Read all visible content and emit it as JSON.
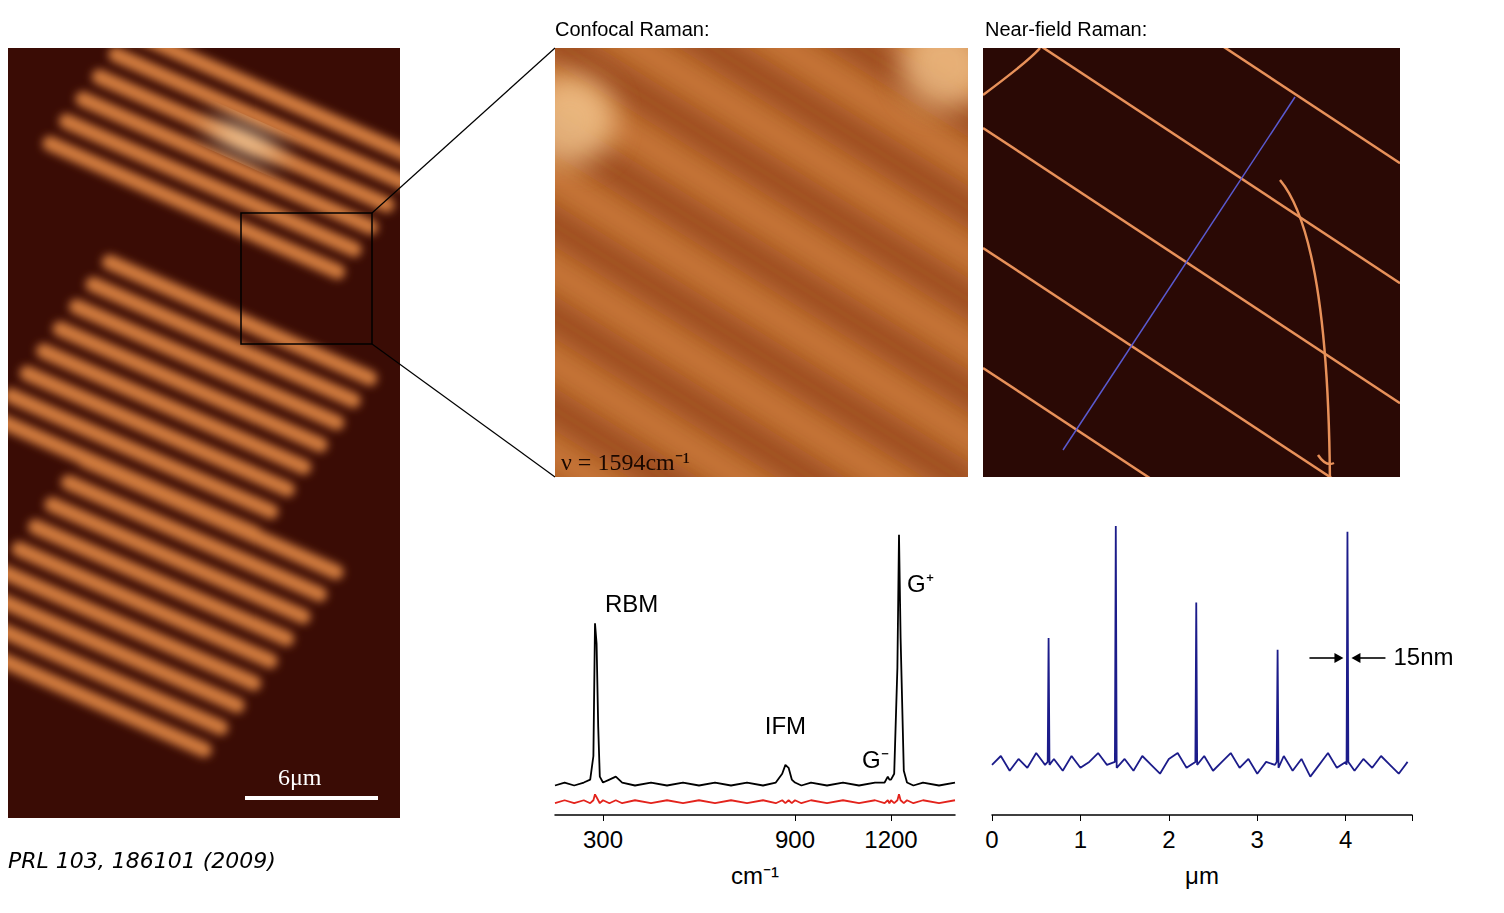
{
  "panels": {
    "left_image": {
      "scale_bar": "6μm"
    },
    "confocal": {
      "title": "Confocal Raman:",
      "label": "ν = 1594cm⁻¹"
    },
    "near_field": {
      "title": "Near-field Raman:"
    }
  },
  "citation": "PRL 103, 186101 (2009)",
  "chart_data": [
    {
      "type": "line",
      "x_label": "cm⁻¹",
      "x": [
        150,
        180,
        210,
        240,
        260,
        270,
        275,
        280,
        285,
        290,
        300,
        320,
        340,
        360,
        400,
        450,
        500,
        550,
        600,
        650,
        700,
        750,
        800,
        840,
        860,
        870,
        880,
        890,
        900,
        920,
        950,
        1000,
        1050,
        1100,
        1150,
        1180,
        1190,
        1195,
        1200,
        1210,
        1220,
        1225,
        1230,
        1240,
        1250,
        1270,
        1300,
        1350,
        1400
      ],
      "series": [
        {
          "color": "#000000",
          "values": [
            0.1,
            0.11,
            0.1,
            0.11,
            0.12,
            0.2,
            0.65,
            0.58,
            0.3,
            0.13,
            0.11,
            0.12,
            0.13,
            0.11,
            0.1,
            0.11,
            0.1,
            0.11,
            0.1,
            0.11,
            0.1,
            0.11,
            0.1,
            0.11,
            0.14,
            0.17,
            0.16,
            0.12,
            0.11,
            0.1,
            0.11,
            0.1,
            0.11,
            0.1,
            0.11,
            0.11,
            0.13,
            0.12,
            0.12,
            0.14,
            0.5,
            0.95,
            0.6,
            0.15,
            0.11,
            0.1,
            0.11,
            0.1,
            0.11
          ]
        },
        {
          "color": "#e3231c",
          "values": [
            0.04,
            0.05,
            0.04,
            0.05,
            0.04,
            0.05,
            0.07,
            0.06,
            0.05,
            0.04,
            0.05,
            0.04,
            0.05,
            0.04,
            0.05,
            0.04,
            0.05,
            0.04,
            0.05,
            0.04,
            0.05,
            0.04,
            0.05,
            0.04,
            0.05,
            0.04,
            0.05,
            0.04,
            0.05,
            0.04,
            0.05,
            0.04,
            0.05,
            0.04,
            0.05,
            0.04,
            0.05,
            0.04,
            0.05,
            0.04,
            0.05,
            0.07,
            0.05,
            0.04,
            0.05,
            0.04,
            0.05,
            0.04,
            0.05
          ]
        }
      ],
      "xlim": [
        150,
        1400
      ],
      "xticks": [
        300,
        900,
        1200
      ],
      "ylim": [
        0,
        1
      ],
      "tick_labels": "x",
      "annotations": [
        {
          "text": "RBM",
          "x": 275
        },
        {
          "text": "IFM",
          "x": 870
        },
        {
          "text": "G⁻",
          "x": 1195
        },
        {
          "text": "G⁺",
          "x": 1225
        }
      ]
    },
    {
      "type": "line",
      "x_label": "μm",
      "x": [
        0,
        0.1,
        0.2,
        0.3,
        0.4,
        0.5,
        0.6,
        0.63,
        0.64,
        0.65,
        0.7,
        0.8,
        0.9,
        1.0,
        1.1,
        1.2,
        1.3,
        1.39,
        1.4,
        1.41,
        1.5,
        1.6,
        1.7,
        1.8,
        1.9,
        2.0,
        2.1,
        2.2,
        2.3,
        2.31,
        2.32,
        2.4,
        2.5,
        2.6,
        2.7,
        2.8,
        2.9,
        3.0,
        3.1,
        3.2,
        3.22,
        3.23,
        3.24,
        3.3,
        3.4,
        3.5,
        3.6,
        3.7,
        3.8,
        3.9,
        4.0,
        4.01,
        4.02,
        4.03,
        4.1,
        4.2,
        4.3,
        4.4,
        4.5,
        4.6,
        4.7
      ],
      "series": [
        {
          "color": "#1c1c8a",
          "values": [
            0.17,
            0.2,
            0.15,
            0.19,
            0.16,
            0.21,
            0.17,
            0.18,
            0.6,
            0.17,
            0.19,
            0.15,
            0.2,
            0.16,
            0.18,
            0.21,
            0.17,
            0.18,
            0.98,
            0.16,
            0.19,
            0.15,
            0.2,
            0.17,
            0.14,
            0.19,
            0.21,
            0.16,
            0.18,
            0.72,
            0.17,
            0.2,
            0.15,
            0.18,
            0.21,
            0.16,
            0.19,
            0.14,
            0.18,
            0.17,
            0.18,
            0.56,
            0.16,
            0.2,
            0.15,
            0.19,
            0.13,
            0.17,
            0.21,
            0.16,
            0.18,
            0.17,
            0.96,
            0.18,
            0.15,
            0.19,
            0.16,
            0.2,
            0.17,
            0.14,
            0.18
          ]
        }
      ],
      "xlim": [
        0,
        4.75
      ],
      "xticks": [
        0,
        1,
        2,
        3,
        4
      ],
      "ylim": [
        0,
        1
      ],
      "tick_labels": "x",
      "annotations": [
        {
          "text": "15nm",
          "x": 4.02
        }
      ]
    }
  ]
}
